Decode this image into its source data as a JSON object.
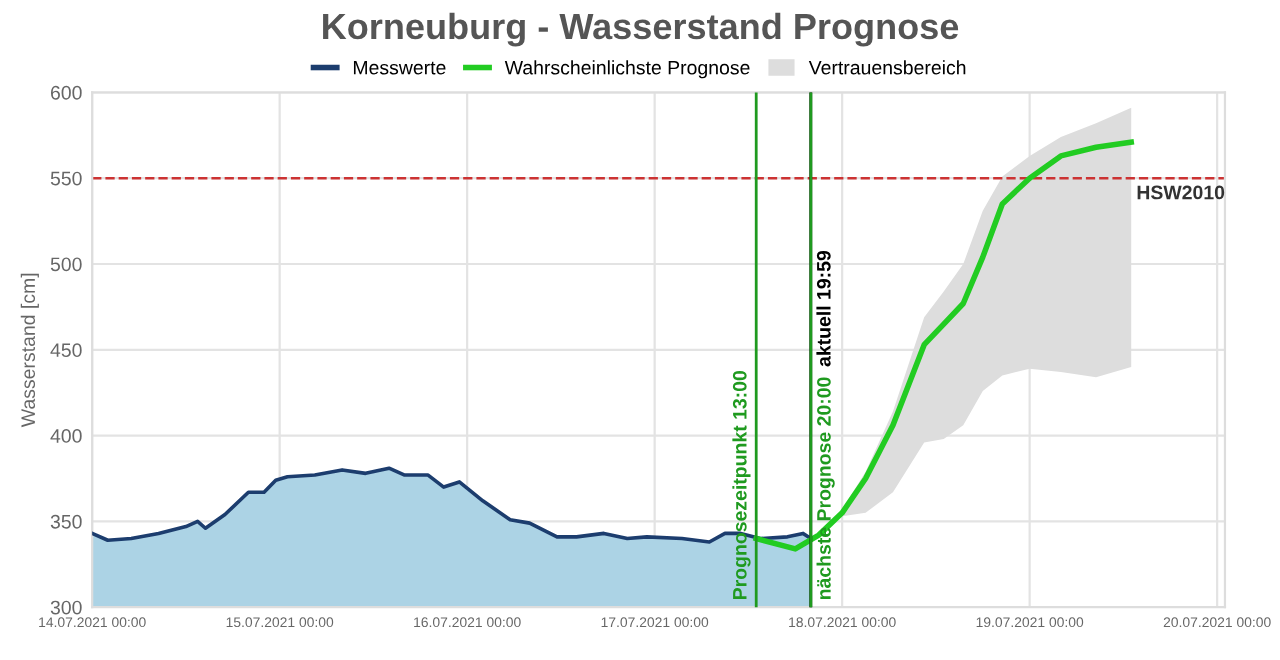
{
  "chart_data": {
    "type": "line",
    "title": "Korneuburg - Wasserstand Prognose",
    "ylabel": "Wasserstand [cm]",
    "xlim": [
      "2021-07-14T00:00",
      "2021-07-20T01:00"
    ],
    "xticks": [
      {
        "value": "2021-07-14T00:00",
        "label": "14.07.2021 00:00"
      },
      {
        "value": "2021-07-15T00:00",
        "label": "15.07.2021 00:00"
      },
      {
        "value": "2021-07-16T00:00",
        "label": "16.07.2021 00:00"
      },
      {
        "value": "2021-07-17T00:00",
        "label": "17.07.2021 00:00"
      },
      {
        "value": "2021-07-18T00:00",
        "label": "18.07.2021 00:00"
      },
      {
        "value": "2021-07-19T00:00",
        "label": "19.07.2021 00:00"
      },
      {
        "value": "2021-07-20T00:00",
        "label": "20.07.2021 00:00"
      }
    ],
    "ylim": [
      300,
      600
    ],
    "yticks": [
      300,
      350,
      400,
      450,
      500,
      550,
      600
    ],
    "grid": true,
    "legend": "top",
    "marker": "none",
    "line_style": "solid",
    "series": [
      {
        "name": "Messwerte",
        "type": "area",
        "color": "#1c3d6e",
        "x": [
          "2021-07-14T00:00",
          "2021-07-14T02:00",
          "2021-07-14T05:00",
          "2021-07-14T08:30",
          "2021-07-14T12:00",
          "2021-07-14T13:30",
          "2021-07-14T14:30",
          "2021-07-14T17:00",
          "2021-07-14T20:00",
          "2021-07-14T22:00",
          "2021-07-14T23:30",
          "2021-07-15T01:00",
          "2021-07-15T04:30",
          "2021-07-15T08:00",
          "2021-07-15T11:00",
          "2021-07-15T14:00",
          "2021-07-15T16:00",
          "2021-07-15T19:00",
          "2021-07-15T21:00",
          "2021-07-15T23:00",
          "2021-07-16T02:00",
          "2021-07-16T05:30",
          "2021-07-16T08:00",
          "2021-07-16T11:30",
          "2021-07-16T14:00",
          "2021-07-16T17:30",
          "2021-07-16T20:30",
          "2021-07-16T23:00",
          "2021-07-17T03:30",
          "2021-07-17T07:00",
          "2021-07-17T09:00",
          "2021-07-17T11:00",
          "2021-07-17T13:30",
          "2021-07-17T17:00",
          "2021-07-17T19:00",
          "2021-07-17T20:00"
        ],
        "values": [
          343,
          339,
          340,
          343,
          347,
          350,
          346,
          354,
          367,
          367,
          374,
          376,
          377,
          380,
          378,
          381,
          377,
          377,
          370,
          373,
          362,
          351,
          349,
          341,
          341,
          343,
          340,
          341,
          340,
          338,
          343,
          343,
          340,
          341,
          343,
          340
        ]
      },
      {
        "name": "Wahrscheinlichste Prognose",
        "color": "#22cc22",
        "x": [
          "2021-07-17T13:00",
          "2021-07-17T18:00",
          "2021-07-17T21:00",
          "2021-07-18T00:00",
          "2021-07-18T03:00",
          "2021-07-18T06:30",
          "2021-07-18T10:30",
          "2021-07-18T13:00",
          "2021-07-18T15:30",
          "2021-07-18T18:00",
          "2021-07-18T20:30",
          "2021-07-19T00:00",
          "2021-07-19T04:00",
          "2021-07-19T08:30",
          "2021-07-19T13:00"
        ],
        "values": [
          340,
          334,
          342,
          355,
          375,
          406,
          453,
          465,
          477,
          504,
          535,
          550,
          563,
          568,
          571
        ],
        "lower": [
          null,
          null,
          null,
          353,
          355,
          367,
          396,
          398,
          406,
          426,
          435,
          439,
          437,
          434,
          440
        ],
        "upper": [
          null,
          null,
          null,
          357,
          379,
          414,
          469,
          484,
          500,
          531,
          551,
          563,
          574,
          582,
          591
        ]
      },
      {
        "name": "Vertrauensbereich",
        "type": "area",
        "color": "#dddddd"
      }
    ],
    "ref_lines": [
      {
        "axis": "y",
        "value": 550,
        "label": "HSW2010",
        "color": "#cc3333",
        "line_style": "dashed"
      },
      {
        "axis": "x",
        "value": "2021-07-17T13:00",
        "label": "Prognosezeitpunkt 13:00",
        "color": "#1f9a1f"
      },
      {
        "axis": "x",
        "value": "2021-07-17T19:59",
        "label": "aktuell 19:59",
        "color": "#000000"
      },
      {
        "axis": "x",
        "value": "2021-07-17T20:00",
        "label": "nächste Prognose 20:00",
        "color": "#1f9a1f"
      }
    ]
  }
}
